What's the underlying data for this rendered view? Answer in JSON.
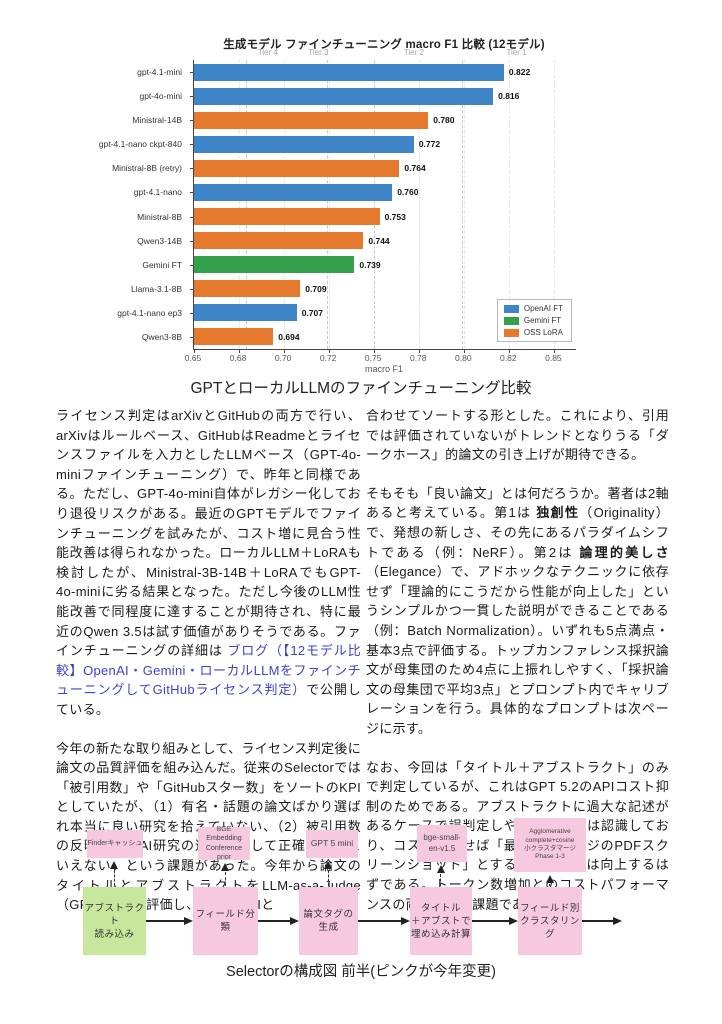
{
  "chart_data": {
    "type": "bar",
    "orientation": "horizontal",
    "title": "生成モデル ファインチューニング macro F1 比較 (12モデル)",
    "xlabel": "macro F1",
    "xlim": [
      0.65,
      0.862
    ],
    "grid": true,
    "legend_position": "lower right",
    "ticks": [
      {
        "v": 0.65,
        "label": "0.65"
      },
      {
        "v": 0.675,
        "label": "0.68"
      },
      {
        "v": 0.7,
        "label": "0.70"
      },
      {
        "v": 0.725,
        "label": "0.72"
      },
      {
        "v": 0.75,
        "label": "0.75"
      },
      {
        "v": 0.775,
        "label": "0.78"
      },
      {
        "v": 0.8,
        "label": "0.80"
      },
      {
        "v": 0.825,
        "label": "0.82"
      },
      {
        "v": 0.85,
        "label": "0.85"
      }
    ],
    "tier_lines": [
      0.679,
      0.724,
      0.75,
      0.799
    ],
    "tier_labels": [
      {
        "label": "Tier 4",
        "x": 0.691
      },
      {
        "label": "Tier 3",
        "x": 0.719
      },
      {
        "label": "Tier 2",
        "x": 0.772
      },
      {
        "label": "Tier 1",
        "x": 0.829
      }
    ],
    "bars": [
      {
        "model": "gpt-4.1-mini",
        "value": 0.822,
        "series": "OpenAI FT"
      },
      {
        "model": "gpt-4o-mini",
        "value": 0.816,
        "series": "OpenAI FT"
      },
      {
        "model": "Ministral-14B",
        "value": 0.78,
        "series": "OSS LoRA"
      },
      {
        "model": "gpt-4.1-nano ckpt-840",
        "value": 0.772,
        "series": "OpenAI FT"
      },
      {
        "model": "Ministral-8B (retry)",
        "value": 0.764,
        "series": "OSS LoRA"
      },
      {
        "model": "gpt-4.1-nano",
        "value": 0.76,
        "series": "OpenAI FT"
      },
      {
        "model": "Ministral-8B",
        "value": 0.753,
        "series": "OSS LoRA"
      },
      {
        "model": "Qwen3-14B",
        "value": 0.744,
        "series": "OSS LoRA"
      },
      {
        "model": "Gemini FT",
        "value": 0.739,
        "series": "Gemini FT"
      },
      {
        "model": "Llama-3.1-8B",
        "value": 0.709,
        "series": "OSS LoRA"
      },
      {
        "model": "gpt-4.1-nano ep3",
        "value": 0.707,
        "series": "OpenAI FT"
      },
      {
        "model": "Qwen3-8B",
        "value": 0.694,
        "series": "OSS LoRA"
      }
    ],
    "legend": [
      {
        "name": "OpenAI FT",
        "color": "#3e86c8"
      },
      {
        "name": "Gemini FT",
        "color": "#33a04c"
      },
      {
        "name": "OSS LoRA",
        "color": "#e5792e"
      }
    ]
  },
  "captions": {
    "chart": "GPTとローカルLLMのファインチューニング比較",
    "diagram": "Selectorの構成図 前半(ピンクが今年変更)"
  },
  "text": {
    "link_color": "#3d43cf",
    "columns": {
      "left": [
        [
          {
            "s": "n",
            "t": "ライセンス判定はarXivとGitHubの両方で行い、arXivはルールベース、GitHubはReadmeとライセンスファイルを入力としたLLMベース（GPT-4o-miniファインチューニング）で、昨年と同様である。ただし、GPT-4o-mini自体がレガシー化しており退役リスクがある。最近のGPTモデルでファインチューニングを試みたが、コスト増に見合う性能改善は得られなかった。ローカルLLM＋LoRAも検討したが、Ministral-3B-14B＋LoRAでもGPT-4o-miniに劣る結果となった。ただし今後のLLM性能改善で同程度に達することが期待され、特に最近のQwen 3.5は試す価値がありそうである。ファインチューニングの詳細は "
          },
          {
            "s": "link",
            "t": "ブログ（【12モデル比較】OpenAI・Gemini・ローカルLLMをファインチューニングしてGitHubライセンス判定）"
          },
          {
            "s": "n",
            "t": "で公開している。"
          }
        ],
        [
          {
            "s": "n",
            "t": "今年の新たな取り組みとして、ライセンス判定後に論文の品質評価を組み込んだ。従来のSelectorでは「被引用数」や「GitHubスター数」をソートのKPIとしていたが、（1）有名・話題の論文ばかり選ばれ本当に良い研究を拾えていない、（2）被引用数の反映が遅くAI研究の速さに対して正確な指標といえない、という課題があった。今年から論文のタイトルとアブストラクトをLLM-as-a-Judge（GPT 5.2）で評価し、従来のKPIと"
          }
        ]
      ],
      "right": [
        [
          {
            "s": "n",
            "t": "合わせてソートする形とした。これにより、引用では評価されていないがトレンドとなりうる「ダークホース」的論文の引き上げが期待できる。"
          }
        ],
        [
          {
            "s": "n",
            "t": "そもそも「良い論文」とは何だろうか。著者は2軸あると考えている。第1は "
          },
          {
            "s": "b",
            "t": "独創性"
          },
          {
            "s": "n",
            "t": "（Originality）で、発想の新しさ、その先にあるパラダイムシフトである（例：NeRF）。第2は "
          },
          {
            "s": "b",
            "t": "論理的美しさ"
          },
          {
            "s": "n",
            "t": "（Elegance）で、アドホックなテクニックに依存せず「理論的にこうだから性能が向上した」というシンプルかつ一貫した説明ができることである（例：Batch Normalization）。いずれも5点満点・基本3点で評価する。トップカンファレンス採択論文が母集団のため4点に上振れしやすく、「採択論文の母集団で平均3点」とプロンプト内でキャリブレーションを行う。具体的なプロンプトは次ページに示す。"
          }
        ],
        [
          {
            "s": "n",
            "t": "なお、今回は「タイトル＋アブストラクト」のみで判定しているが、これはGPT 5.2のAPIコスト抑制のためである。アブストラクトに過大な記述があるケースで誤判定しやすいリスクは認識しており、コストが許せば「最初の数ページのPDFスクリーンショット」とするほうが精度は向上するはずである。トークン数増加とのコストパフォーマンスの両立が次の課題である。"
          }
        ]
      ]
    }
  },
  "diagram": {
    "colors": {
      "green": "#c6e79c",
      "pink": "#f7c9e0"
    },
    "nodes": [
      {
        "lines": [
          "アブストラクト",
          "読み込み"
        ],
        "color": "green"
      },
      {
        "lines": [
          "フィールド分類"
        ],
        "color": "pink"
      },
      {
        "lines": [
          "論文タグの生成"
        ],
        "color": "pink"
      },
      {
        "lines": [
          "タイトル",
          "＋アブストで",
          "埋め込み計算"
        ],
        "color": "pink"
      },
      {
        "lines": [
          "フィールド別",
          "クラスタリング"
        ],
        "color": "pink"
      }
    ],
    "annotations": [
      {
        "lines": [
          "Finderキャッシュ"
        ]
      },
      {
        "lines": [
          "BGE Embedding",
          "Conference prior"
        ]
      },
      {
        "lines": [
          "GPT 5 mini"
        ]
      },
      {
        "lines": [
          "bge-small-",
          "en-v1.5"
        ]
      },
      {
        "lines": [
          "Agglomerative",
          "complete+cosine",
          "小クラスタマージ",
          "Phase 1-3"
        ]
      }
    ]
  }
}
